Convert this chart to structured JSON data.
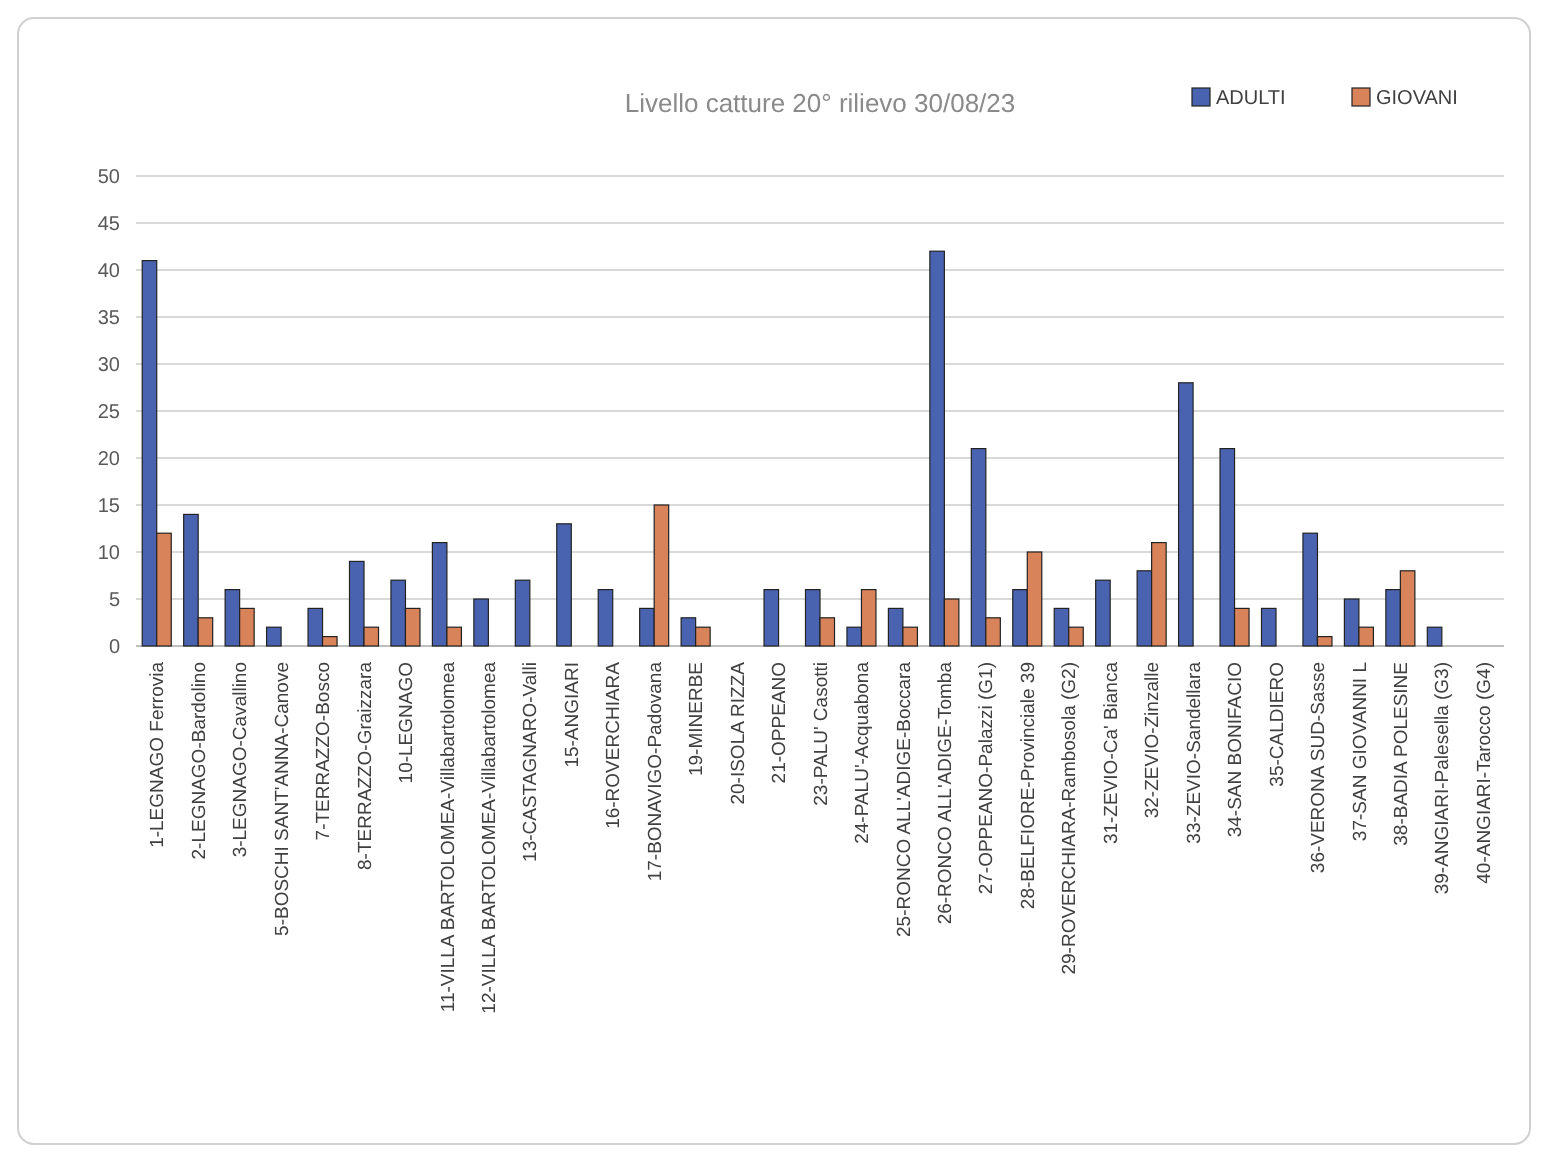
{
  "chart_data": {
    "type": "bar",
    "title": "Livello catture 20° rilievo 30/08/23",
    "categories": [
      "1-LEGNAGO Ferrovia",
      "2-LEGNAGO-Bardolino",
      "3-LEGNAGO-Cavallino",
      "5-BOSCHI SANT'ANNA-Canove",
      "7-TERRAZZO-Bosco",
      "8-TERRAZZO-Graizzara",
      "10-LEGNAGO",
      "11-VILLA BARTOLOMEA-Villabartolomea",
      "12-VILLA BARTOLOMEA-Villabartolomea",
      "13-CASTAGNARO-Valli",
      "15-ANGIARI",
      "16-ROVERCHIARA",
      "17-BONAVIGO-Padovana",
      "19-MINERBE",
      "20-ISOLA RIZZA",
      "21-OPPEANO",
      "23-PALU' Casotti",
      "24-PALU'-Acquabona",
      "25-RONCO ALL'ADIGE-Boccara",
      "26-RONCO ALL'ADIGE-Tomba",
      "27-OPPEANO-Palazzi (G1)",
      "28-BELFIORE-Provinciale 39",
      "29-ROVERCHIARA-Rambosola (G2)",
      "31-ZEVIO-Ca' Bianca",
      "32-ZEVIO-Zinzalle",
      "33-ZEVIO-Sandellara",
      "34-SAN BONIFACIO",
      "35-CALDIERO",
      "36-VERONA SUD-Sasse",
      "37-SAN GIOVANNI L",
      "38-BADIA POLESINE",
      "39-ANGIARI-Palesella (G3)",
      "40-ANGIARI-Tarocco (G4)"
    ],
    "series": [
      {
        "name": "ADULTI",
        "color": "#4a63b0",
        "values": [
          41,
          14,
          6,
          2,
          4,
          9,
          7,
          11,
          5,
          7,
          13,
          6,
          4,
          3,
          0,
          6,
          6,
          2,
          4,
          42,
          21,
          6,
          4,
          7,
          8,
          28,
          21,
          4,
          12,
          5,
          6,
          2,
          0
        ]
      },
      {
        "name": "GIOVANI",
        "color": "#d9835a",
        "values": [
          12,
          3,
          4,
          0,
          1,
          2,
          4,
          2,
          0,
          0,
          0,
          0,
          15,
          2,
          0,
          0,
          3,
          6,
          2,
          5,
          3,
          10,
          2,
          0,
          11,
          0,
          4,
          0,
          1,
          2,
          8,
          0,
          0
        ]
      }
    ],
    "ylim": [
      0,
      50
    ],
    "yticks": [
      0,
      5,
      10,
      15,
      20,
      25,
      30,
      35,
      40,
      45,
      50
    ],
    "grid": "y",
    "legend": "top right"
  }
}
